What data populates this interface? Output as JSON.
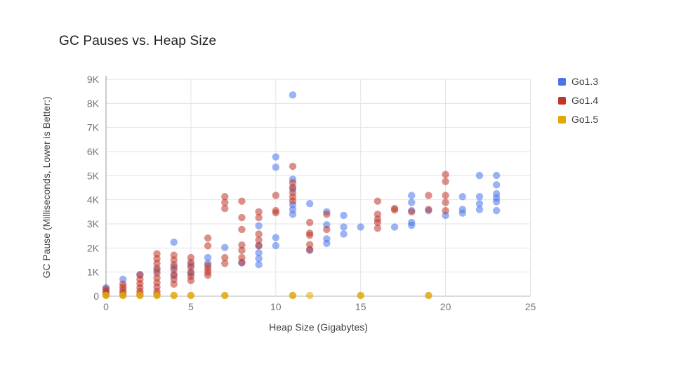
{
  "chart_data": {
    "type": "scatter",
    "title": "GC Pauses vs. Heap Size",
    "xlabel": "Heap Size (Gigabytes)",
    "ylabel": "GC Pause (Milliseconds, Lower is Better:)",
    "xlim": [
      0,
      25
    ],
    "ylim": [
      0,
      9000
    ],
    "x_ticks": [
      0,
      5,
      10,
      15,
      20,
      25
    ],
    "x_tick_labels": [
      "0",
      "5",
      "10",
      "15",
      "20",
      "25"
    ],
    "y_ticks": [
      0,
      1000,
      2000,
      3000,
      4000,
      5000,
      6000,
      7000,
      8000,
      9000
    ],
    "y_tick_labels": [
      "0",
      "1K",
      "2K",
      "3K",
      "4K",
      "5K",
      "6K",
      "7K",
      "8K",
      "9K"
    ],
    "grid": true,
    "legend_position": "right",
    "grid_color": "#e3e3e3",
    "baseline_color": "#b7b7b7",
    "axis_line_color": "#999999",
    "series": [
      {
        "name": "Go1.3",
        "color": "#4875EB",
        "alpha": 0.55,
        "points": [
          [
            0,
            350
          ],
          [
            1,
            700
          ],
          [
            2,
            900
          ],
          [
            3,
            1080
          ],
          [
            4,
            2240
          ],
          [
            4,
            1200
          ],
          [
            4,
            850
          ],
          [
            5,
            1300
          ],
          [
            5,
            950
          ],
          [
            6,
            1600
          ],
          [
            6,
            1360
          ],
          [
            7,
            2020
          ],
          [
            8,
            1380
          ],
          [
            9,
            2920
          ],
          [
            9,
            2100
          ],
          [
            9,
            1800
          ],
          [
            9,
            1560
          ],
          [
            9,
            1310
          ],
          [
            10,
            5780
          ],
          [
            10,
            5350
          ],
          [
            10,
            2430
          ],
          [
            10,
            2100
          ],
          [
            11,
            8350
          ],
          [
            11,
            4850
          ],
          [
            11,
            4450
          ],
          [
            11,
            3800
          ],
          [
            11,
            3600
          ],
          [
            11,
            3400
          ],
          [
            12,
            3840
          ],
          [
            12,
            1900
          ],
          [
            13,
            3500
          ],
          [
            13,
            2960
          ],
          [
            13,
            2380
          ],
          [
            13,
            2190
          ],
          [
            14,
            3350
          ],
          [
            14,
            2870
          ],
          [
            14,
            2580
          ],
          [
            15,
            2870
          ],
          [
            17,
            2870
          ],
          [
            18,
            4180
          ],
          [
            18,
            3890
          ],
          [
            18,
            3550
          ],
          [
            18,
            3060
          ],
          [
            18,
            2940
          ],
          [
            19,
            3550
          ],
          [
            20,
            3350
          ],
          [
            21,
            4130
          ],
          [
            21,
            3600
          ],
          [
            21,
            3450
          ],
          [
            22,
            5010
          ],
          [
            22,
            4130
          ],
          [
            22,
            3840
          ],
          [
            22,
            3600
          ],
          [
            23,
            5010
          ],
          [
            23,
            4620
          ],
          [
            23,
            4250
          ],
          [
            23,
            4080
          ],
          [
            23,
            3920
          ],
          [
            23,
            3550
          ]
        ]
      },
      {
        "name": "Go1.4",
        "color": "#BE372A",
        "alpha": 0.55,
        "points": [
          [
            0,
            300
          ],
          [
            0,
            220
          ],
          [
            0,
            140
          ],
          [
            0,
            60
          ],
          [
            1,
            500
          ],
          [
            1,
            380
          ],
          [
            1,
            260
          ],
          [
            1,
            150
          ],
          [
            1,
            60
          ],
          [
            2,
            880
          ],
          [
            2,
            700
          ],
          [
            2,
            520
          ],
          [
            2,
            350
          ],
          [
            2,
            200
          ],
          [
            2,
            80
          ],
          [
            3,
            1760
          ],
          [
            3,
            1560
          ],
          [
            3,
            1360
          ],
          [
            3,
            1160
          ],
          [
            3,
            960
          ],
          [
            3,
            760
          ],
          [
            3,
            560
          ],
          [
            3,
            380
          ],
          [
            3,
            200
          ],
          [
            3,
            80
          ],
          [
            4,
            1700
          ],
          [
            4,
            1500
          ],
          [
            4,
            1300
          ],
          [
            4,
            1100
          ],
          [
            4,
            900
          ],
          [
            4,
            700
          ],
          [
            4,
            500
          ],
          [
            5,
            1600
          ],
          [
            5,
            1400
          ],
          [
            5,
            1200
          ],
          [
            5,
            1000
          ],
          [
            5,
            820
          ],
          [
            5,
            650
          ],
          [
            6,
            2410
          ],
          [
            6,
            2090
          ],
          [
            6,
            1270
          ],
          [
            6,
            1130
          ],
          [
            6,
            1000
          ],
          [
            6,
            870
          ],
          [
            7,
            4130
          ],
          [
            7,
            3890
          ],
          [
            7,
            3640
          ],
          [
            7,
            1600
          ],
          [
            7,
            1360
          ],
          [
            8,
            3940
          ],
          [
            8,
            3260
          ],
          [
            8,
            2770
          ],
          [
            8,
            2120
          ],
          [
            8,
            1900
          ],
          [
            8,
            1600
          ],
          [
            8,
            1400
          ],
          [
            9,
            3500
          ],
          [
            9,
            3260
          ],
          [
            9,
            2580
          ],
          [
            9,
            2330
          ],
          [
            9,
            2090
          ],
          [
            10,
            4180
          ],
          [
            10,
            3550
          ],
          [
            10,
            3460
          ],
          [
            11,
            5390
          ],
          [
            11,
            4710
          ],
          [
            11,
            4520
          ],
          [
            11,
            4300
          ],
          [
            11,
            4120
          ],
          [
            11,
            3950
          ],
          [
            12,
            3060
          ],
          [
            12,
            2620
          ],
          [
            12,
            2530
          ],
          [
            12,
            2140
          ],
          [
            12,
            1940
          ],
          [
            13,
            3400
          ],
          [
            13,
            2770
          ],
          [
            16,
            3940
          ],
          [
            16,
            3400
          ],
          [
            16,
            3200
          ],
          [
            16,
            3060
          ],
          [
            16,
            2820
          ],
          [
            17,
            3640
          ],
          [
            17,
            3580
          ],
          [
            18,
            3500
          ],
          [
            19,
            4180
          ],
          [
            19,
            3600
          ],
          [
            20,
            5050
          ],
          [
            20,
            4760
          ],
          [
            20,
            4180
          ],
          [
            20,
            3890
          ],
          [
            20,
            3550
          ]
        ]
      },
      {
        "name": "Go1.5",
        "color": "#E2A80A",
        "alpha": 0.85,
        "points": [
          [
            0,
            30
          ],
          [
            1,
            30
          ],
          [
            2,
            30
          ],
          [
            3,
            30
          ],
          [
            4,
            30
          ],
          [
            5,
            30
          ],
          [
            7,
            30
          ],
          [
            11,
            30
          ],
          [
            12,
            30,
            0.55
          ],
          [
            15,
            30
          ],
          [
            19,
            30
          ]
        ]
      }
    ]
  }
}
